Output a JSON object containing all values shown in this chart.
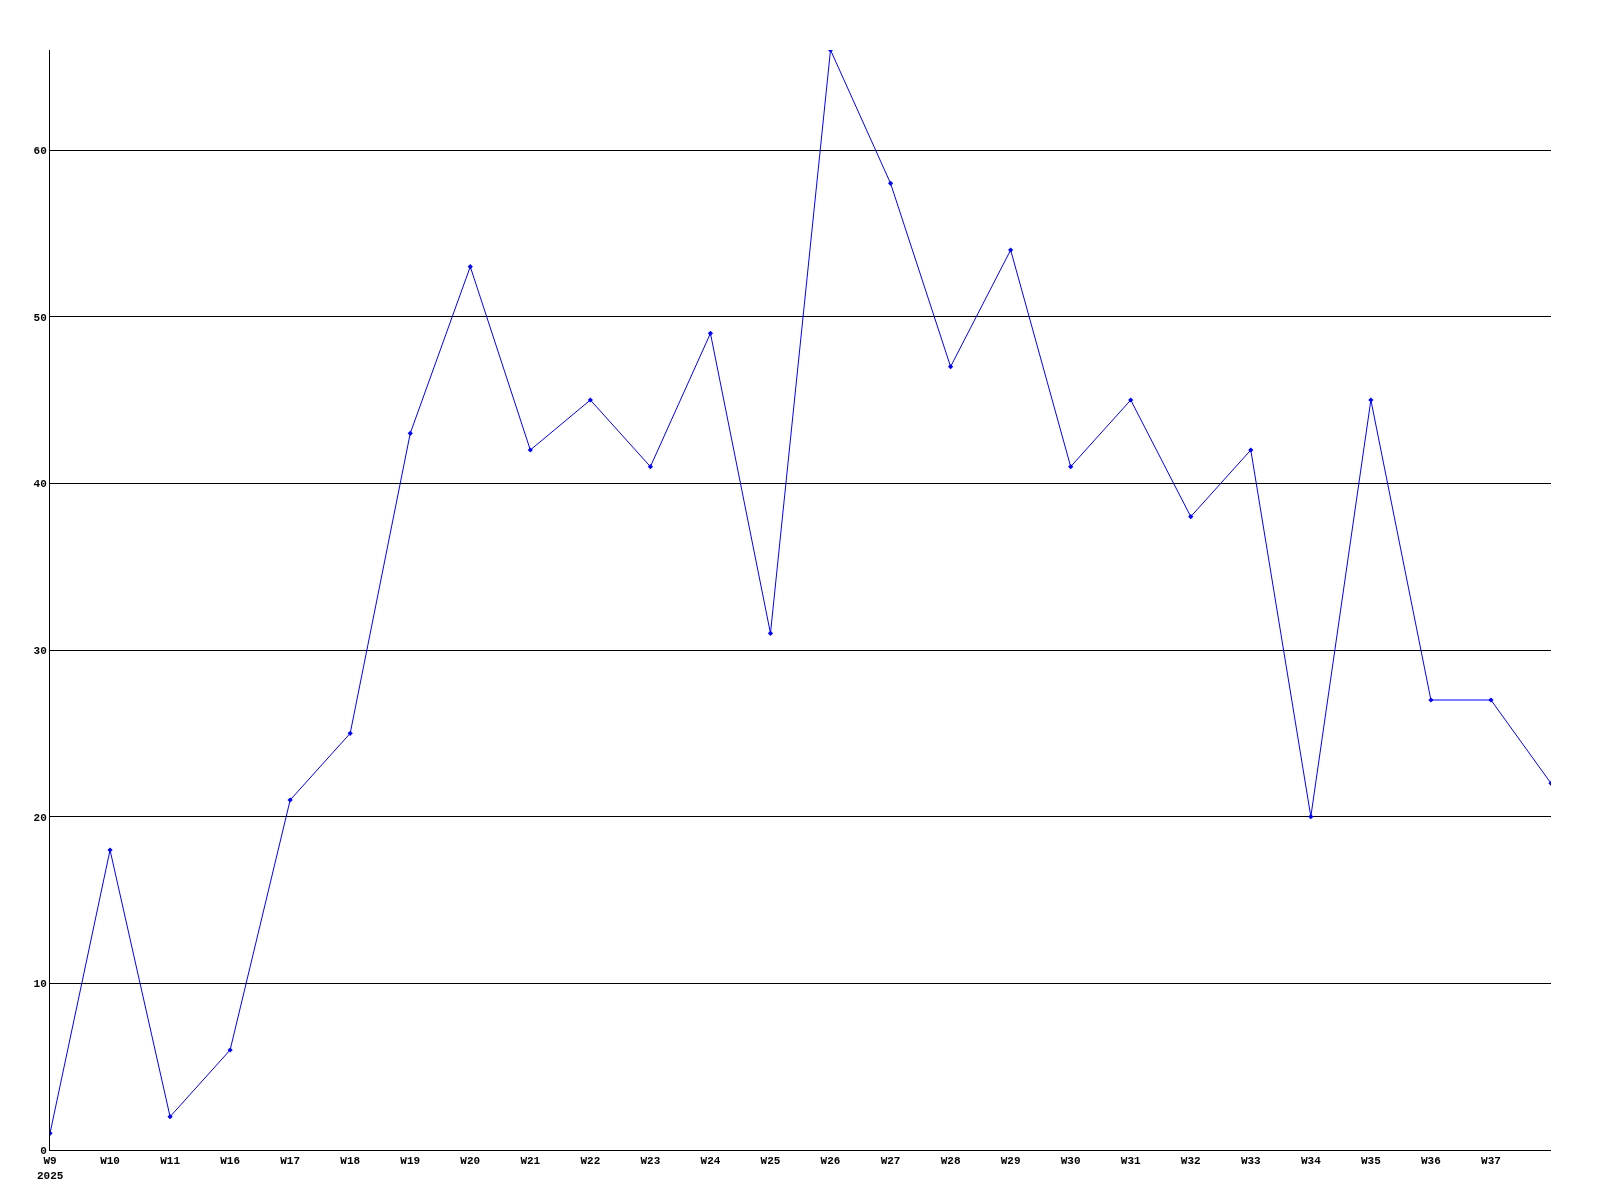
{
  "chart_data": {
    "type": "line",
    "categories": [
      "W9",
      "W10",
      "W11",
      "W16",
      "W17",
      "W18",
      "W19",
      "W20",
      "W21",
      "W22",
      "W23",
      "W24",
      "W25",
      "W26",
      "W27",
      "W28",
      "W29",
      "W30",
      "W31",
      "W32",
      "W33",
      "W34",
      "W35",
      "W36",
      "W37",
      null
    ],
    "series": [
      {
        "color": "#0000ff",
        "values": [
          1,
          18,
          2,
          6,
          21,
          25,
          43,
          53,
          42,
          45,
          41,
          49,
          31,
          66,
          58,
          47,
          54,
          41,
          45,
          38,
          42,
          20,
          45,
          27,
          27,
          22
        ]
      }
    ],
    "ylim": [
      0,
      66
    ],
    "yticks": [
      0,
      10,
      20,
      30,
      40,
      50,
      60
    ],
    "grid": "y",
    "marker": "diamond",
    "line_style": "solid",
    "annotations": [
      "2025"
    ]
  }
}
